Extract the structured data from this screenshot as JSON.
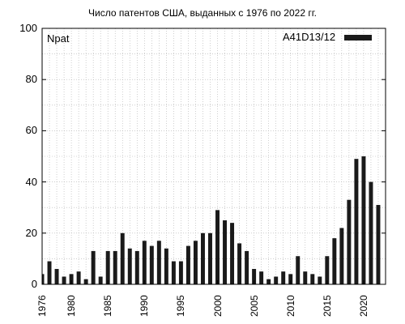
{
  "chart_data": {
    "type": "bar",
    "title": "Число патентов США, выданных с 1976 по 2022 гг.",
    "ylabel": "Npat",
    "xlabel": "",
    "ylim": [
      0,
      100
    ],
    "xlim": [
      1976,
      2023
    ],
    "yticks": [
      0,
      20,
      40,
      60,
      80,
      100
    ],
    "xticks": [
      1976,
      1980,
      1985,
      1990,
      1995,
      2000,
      2005,
      2010,
      2015,
      2020
    ],
    "grid": true,
    "legend_position": "top-right",
    "series": [
      {
        "name": "A41D13/12",
        "color": "#1a1a1a",
        "x": [
          1976,
          1977,
          1978,
          1979,
          1980,
          1981,
          1982,
          1983,
          1984,
          1985,
          1986,
          1987,
          1988,
          1989,
          1990,
          1991,
          1992,
          1993,
          1994,
          1995,
          1996,
          1997,
          1998,
          1999,
          2000,
          2001,
          2002,
          2003,
          2004,
          2005,
          2006,
          2007,
          2008,
          2009,
          2010,
          2011,
          2012,
          2013,
          2014,
          2015,
          2016,
          2017,
          2018,
          2019,
          2020,
          2021,
          2022
        ],
        "values": [
          4,
          9,
          6,
          3,
          4,
          5,
          2,
          13,
          3,
          13,
          13,
          20,
          14,
          13,
          17,
          15,
          17,
          14,
          9,
          9,
          15,
          17,
          20,
          20,
          29,
          25,
          24,
          16,
          13,
          6,
          5,
          2,
          3,
          5,
          4,
          11,
          5,
          4,
          3,
          11,
          18,
          22,
          33,
          49,
          50,
          40,
          31
        ]
      }
    ]
  }
}
